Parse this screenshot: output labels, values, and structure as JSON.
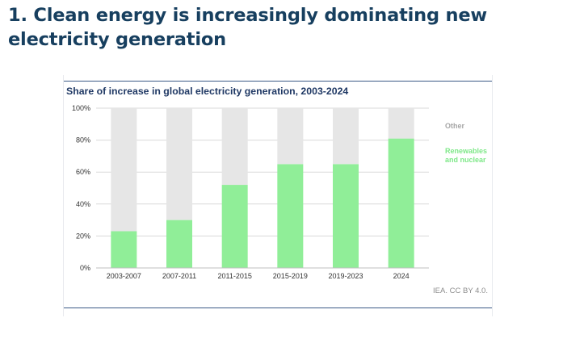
{
  "slide": {
    "title": "1. Clean energy is increasingly dominating new electricity generation"
  },
  "credit": "IEA. CC BY 4.0.",
  "colors": {
    "renewables": "#90ee98",
    "other": "#e6e6e6",
    "other_label": "#a6a6a6",
    "title_text": "#173f5f"
  },
  "chart_data": {
    "type": "bar",
    "stacked": true,
    "title": "Share of increase in global electricity generation, 2003-2024",
    "categories": [
      "2003-2007",
      "2007-2011",
      "2011-2015",
      "2015-2019",
      "2019-2023",
      "2024"
    ],
    "series": [
      {
        "name": "Renewables and nuclear",
        "values": [
          23,
          30,
          52,
          65,
          65,
          81
        ]
      },
      {
        "name": "Other",
        "values": [
          77,
          70,
          48,
          35,
          35,
          19
        ]
      }
    ],
    "legend_lines": {
      "Renewables and nuclear": [
        "Renewables",
        "and nuclear"
      ],
      "Other": [
        "Other"
      ]
    },
    "yticks": [
      "0%",
      "20%",
      "40%",
      "60%",
      "80%",
      "100%"
    ],
    "ylim": [
      0,
      100
    ],
    "grid": true,
    "legend_position": "right"
  }
}
